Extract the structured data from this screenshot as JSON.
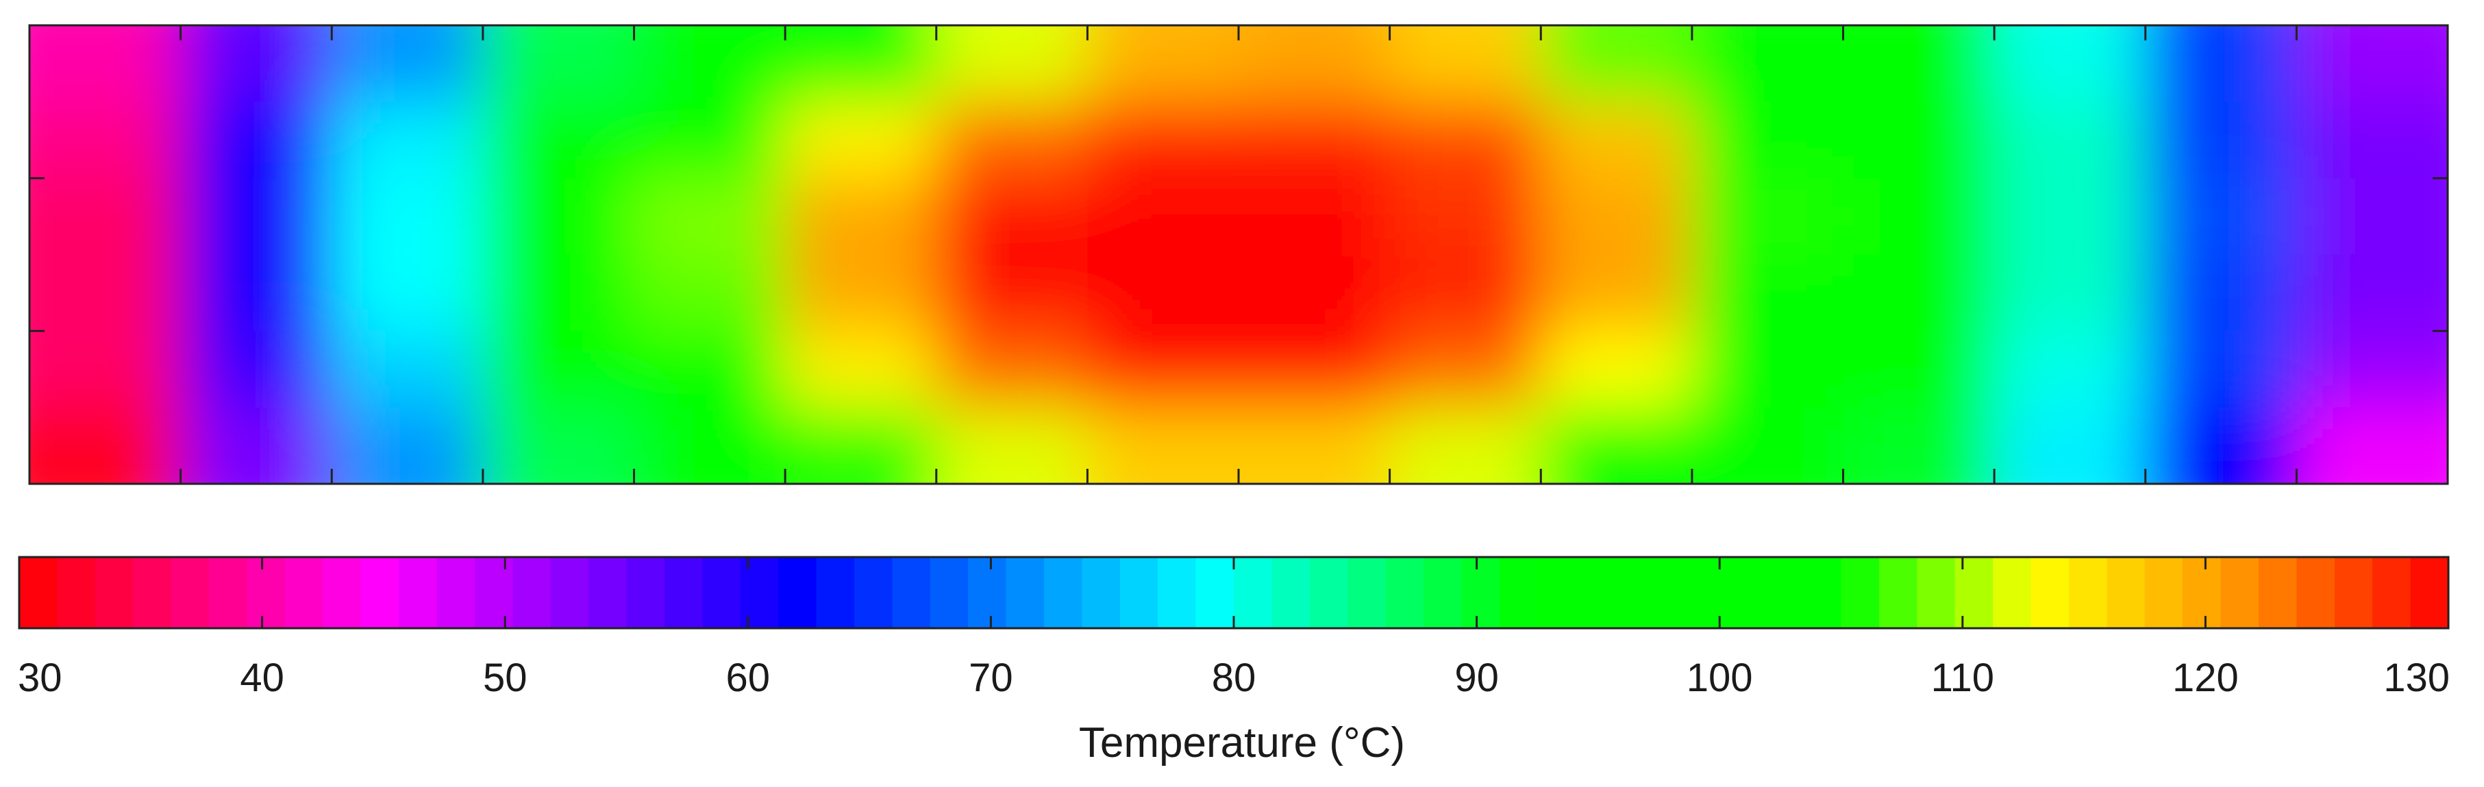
{
  "chart_data": {
    "type": "heatmap",
    "title": "",
    "description_of_field": "Temperature field over a rectangular domain; hot core in the middle, coolest at left and right edges.",
    "grid": {
      "rows": 6,
      "cols": 16,
      "values": [
        [
          40,
          56,
          72,
          88,
          100,
          104,
          112,
          119,
          120,
          117,
          108,
          101,
          92,
          80,
          66,
          52
        ],
        [
          38,
          60,
          78,
          95,
          103,
          114,
          124,
          128,
          128,
          126,
          118,
          104,
          96,
          82,
          66,
          54
        ],
        [
          36,
          60,
          79,
          96,
          109,
          120,
          129,
          130,
          130,
          127,
          120,
          106,
          97,
          82,
          67,
          54
        ],
        [
          36,
          60,
          79,
          96,
          108,
          120,
          129,
          130,
          130,
          128,
          120,
          105,
          96,
          82,
          66,
          54
        ],
        [
          36,
          58,
          76,
          93,
          103,
          114,
          124,
          129,
          129,
          124,
          113,
          103,
          94,
          80,
          66,
          52
        ],
        [
          32,
          54,
          72,
          88,
          100,
          106,
          112,
          117,
          117,
          112,
          105,
          100,
          90,
          78,
          62,
          46
        ]
      ]
    },
    "colorbar": {
      "label": "Temperature (°C)",
      "min": 30,
      "max": 130,
      "ticks": [
        30,
        40,
        50,
        60,
        70,
        80,
        90,
        100,
        110,
        120,
        130
      ],
      "tick_labels": [
        "30",
        "40",
        "50",
        "60",
        "70",
        "80",
        "90",
        "100",
        "110",
        "120",
        "130"
      ],
      "colors": [
        {
          "v": 30,
          "c": "#ff0000"
        },
        {
          "v": 45,
          "c": "#ff00ff"
        },
        {
          "v": 62,
          "c": "#0000ff"
        },
        {
          "v": 79,
          "c": "#00ffff"
        },
        {
          "v": 92,
          "c": "#00ff00"
        },
        {
          "v": 105,
          "c": "#00ff00"
        },
        {
          "v": 113,
          "c": "#ffff00"
        },
        {
          "v": 121,
          "c": "#ff9900"
        },
        {
          "v": 130,
          "c": "#ff0000"
        }
      ]
    },
    "axes": {
      "x_ticks_count": 15,
      "y_ticks_count": 2,
      "x_tick_labels_shown": false,
      "y_tick_labels_shown": false
    }
  }
}
